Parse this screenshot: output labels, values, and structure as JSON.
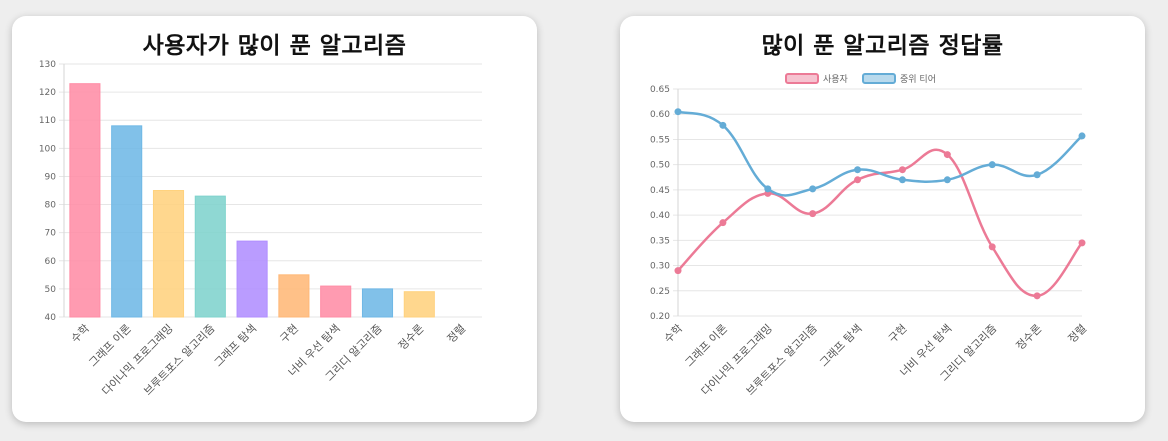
{
  "charts": [
    {
      "title": "사용자가 많이 푼 알고리즘",
      "chart_data": {
        "type": "bar",
        "categories": [
          "수학",
          "그래프 이론",
          "다이나믹 프로그래밍",
          "브루트포스 알고리즘",
          "그래프 탐색",
          "구현",
          "너비 우선 탐색",
          "그리디 알고리즘",
          "정수론",
          "정렬"
        ],
        "values": [
          123,
          108,
          85,
          83,
          67,
          55,
          51,
          50,
          49,
          40
        ],
        "ylim": [
          40,
          130
        ],
        "yticks": [
          40,
          50,
          60,
          70,
          80,
          90,
          100,
          110,
          120,
          130
        ],
        "grid": true,
        "legend": "none"
      }
    },
    {
      "title": "많이 푼 알고리즘 정답률",
      "chart_data": {
        "type": "line",
        "categories": [
          "수학",
          "그래프 이론",
          "다이나믹 프로그래밍",
          "브루트포스 알고리즘",
          "그래프 탐색",
          "구현",
          "너비 우선 탐색",
          "그리디 알고리즘",
          "정수론",
          "정렬"
        ],
        "series": [
          {
            "name": "사용자",
            "values": [
              0.29,
              0.385,
              0.443,
              0.403,
              0.47,
              0.49,
              0.52,
              0.337,
              0.24,
              0.345
            ]
          },
          {
            "name": "중위 티어",
            "values": [
              0.605,
              0.578,
              0.452,
              0.452,
              0.49,
              0.47,
              0.47,
              0.5,
              0.48,
              0.557
            ]
          }
        ],
        "ylim": [
          0.2,
          0.65
        ],
        "yticks": [
          "0.20",
          "0.25",
          "0.30",
          "0.35",
          "0.40",
          "0.45",
          "0.50",
          "0.55",
          "0.60",
          "0.65"
        ],
        "grid": true,
        "legend": "top"
      }
    }
  ],
  "colors": {
    "bars": [
      "#ff8da6",
      "#6fb8e6",
      "#ffd27e",
      "#7fd3cd",
      "#b18eff",
      "#ffb878",
      "#ff8da6",
      "#6fb8e6",
      "#ffd27e",
      "#7fd3cd"
    ],
    "series": [
      "#ec7a96",
      "#64acd6"
    ]
  }
}
